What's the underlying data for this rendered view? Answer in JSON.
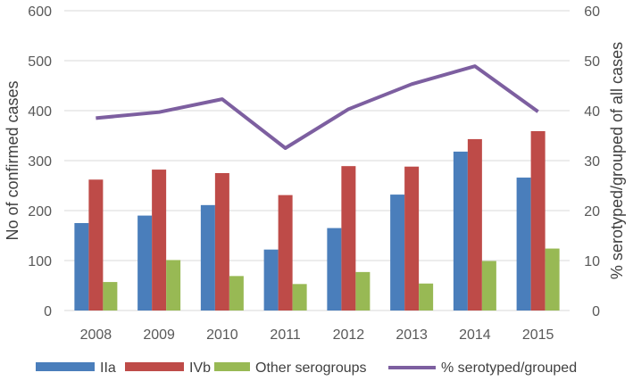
{
  "chart_data": {
    "type": "bar",
    "categories": [
      "2008",
      "2009",
      "2010",
      "2011",
      "2012",
      "2013",
      "2014",
      "2015"
    ],
    "series": [
      {
        "name": "IIa",
        "type": "bar",
        "axis": "left",
        "color": "#4a7ebb",
        "values": [
          175,
          190,
          211,
          122,
          165,
          232,
          318,
          266
        ]
      },
      {
        "name": "IVb",
        "type": "bar",
        "axis": "left",
        "color": "#be4b48",
        "values": [
          262,
          282,
          275,
          231,
          289,
          288,
          343,
          359
        ]
      },
      {
        "name": "Other serogroups",
        "type": "bar",
        "axis": "left",
        "color": "#98b954",
        "values": [
          57,
          101,
          69,
          53,
          77,
          54,
          99,
          124
        ]
      },
      {
        "name": "% serotyped/grouped",
        "type": "line",
        "axis": "right",
        "color": "#7d5fa0",
        "values": [
          38.5,
          39.7,
          42.3,
          32.5,
          40.3,
          45.3,
          48.9,
          39.8
        ]
      }
    ],
    "y_left": {
      "label": "No of confirmed cases",
      "ylim": [
        0,
        600
      ],
      "ticks": [
        "0",
        "100",
        "200",
        "300",
        "400",
        "500",
        "600"
      ]
    },
    "y_right": {
      "label": "% serotyped/grouped of all cases",
      "ylim": [
        0,
        60
      ],
      "ticks": [
        "0",
        "10",
        "20",
        "30",
        "40",
        "50",
        "60"
      ]
    },
    "grid": true,
    "legend_position": "bottom"
  }
}
